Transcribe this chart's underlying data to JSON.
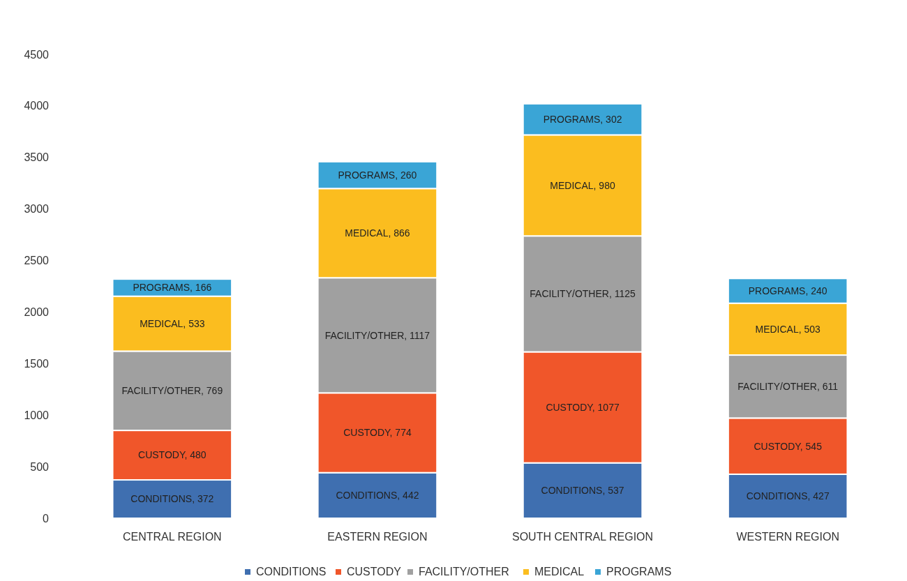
{
  "chart_data": {
    "type": "bar",
    "stacked": true,
    "categories": [
      "CENTRAL REGION",
      "EASTERN REGION",
      "SOUTH CENTRAL REGION",
      "WESTERN REGION"
    ],
    "series": [
      {
        "name": "CONDITIONS",
        "color": "#3f6fb0",
        "values": [
          372,
          442,
          537,
          427
        ],
        "value_labels": [
          "CONDITIONS, 372",
          "CONDITIONS, 442",
          "CONDITIONS, 537",
          "CONDITIONS, 427"
        ]
      },
      {
        "name": "CUSTODY",
        "color": "#f0562a",
        "values": [
          480,
          774,
          1077,
          545
        ],
        "value_labels": [
          "CUSTODY, 480",
          "CUSTODY, 774",
          "CUSTODY, 1077",
          "CUSTODY, 545"
        ]
      },
      {
        "name": "FACILITY/OTHER",
        "color": "#a0a0a0",
        "values": [
          769,
          1117,
          1125,
          611
        ],
        "value_labels": [
          "FACILITY/OTHER, 769",
          "FACILITY/OTHER, 1117",
          "FACILITY/OTHER, 1125",
          "FACILITY/OTHER, 611"
        ]
      },
      {
        "name": "MEDICAL",
        "color": "#fbbd1f",
        "values": [
          533,
          866,
          980,
          503
        ],
        "value_labels": [
          "MEDICAL, 533",
          "MEDICAL, 866",
          "MEDICAL, 980",
          "MEDICAL, 503"
        ]
      },
      {
        "name": "PROGRAMS",
        "color": "#3aa5d6",
        "values": [
          166,
          260,
          302,
          240
        ],
        "value_labels": [
          "PROGRAMS, 166",
          "PROGRAMS, 260",
          "PROGRAMS, 302",
          "PROGRAMS, 240"
        ]
      }
    ],
    "ylim": [
      0,
      4500
    ],
    "yticks": [
      0,
      500,
      1000,
      1500,
      2000,
      2500,
      3000,
      3500,
      4000,
      4500
    ],
    "grid": false,
    "legend": "bottom"
  }
}
